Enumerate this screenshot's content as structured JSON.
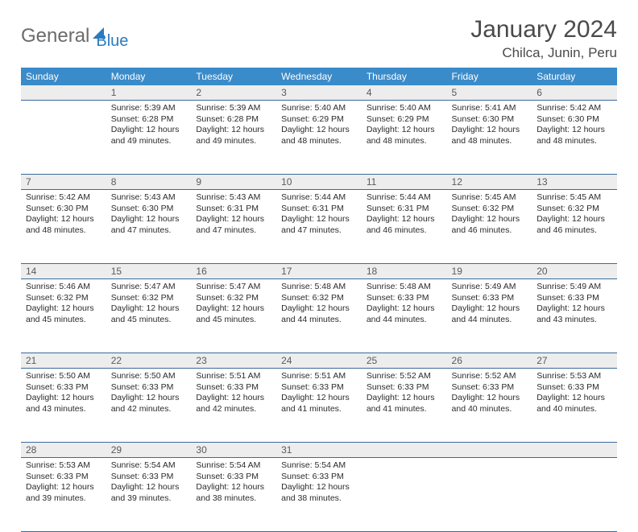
{
  "logo": {
    "part1": "General",
    "part2": "Blue"
  },
  "title": "January 2024",
  "location": "Chilca, Junin, Peru",
  "colors": {
    "header_bg": "#3a8bc9",
    "header_text": "#ffffff",
    "daynum_bg": "#ededed",
    "border": "#3a6a9a",
    "logo_gray": "#6b6b6b",
    "logo_blue": "#2b7bbf"
  },
  "day_names": [
    "Sunday",
    "Monday",
    "Tuesday",
    "Wednesday",
    "Thursday",
    "Friday",
    "Saturday"
  ],
  "start_offset": 1,
  "cells": [
    {
      "n": "1",
      "sunrise": "5:39 AM",
      "sunset": "6:28 PM",
      "daylight": "12 hours and 49 minutes."
    },
    {
      "n": "2",
      "sunrise": "5:39 AM",
      "sunset": "6:28 PM",
      "daylight": "12 hours and 49 minutes."
    },
    {
      "n": "3",
      "sunrise": "5:40 AM",
      "sunset": "6:29 PM",
      "daylight": "12 hours and 48 minutes."
    },
    {
      "n": "4",
      "sunrise": "5:40 AM",
      "sunset": "6:29 PM",
      "daylight": "12 hours and 48 minutes."
    },
    {
      "n": "5",
      "sunrise": "5:41 AM",
      "sunset": "6:30 PM",
      "daylight": "12 hours and 48 minutes."
    },
    {
      "n": "6",
      "sunrise": "5:42 AM",
      "sunset": "6:30 PM",
      "daylight": "12 hours and 48 minutes."
    },
    {
      "n": "7",
      "sunrise": "5:42 AM",
      "sunset": "6:30 PM",
      "daylight": "12 hours and 48 minutes."
    },
    {
      "n": "8",
      "sunrise": "5:43 AM",
      "sunset": "6:30 PM",
      "daylight": "12 hours and 47 minutes."
    },
    {
      "n": "9",
      "sunrise": "5:43 AM",
      "sunset": "6:31 PM",
      "daylight": "12 hours and 47 minutes."
    },
    {
      "n": "10",
      "sunrise": "5:44 AM",
      "sunset": "6:31 PM",
      "daylight": "12 hours and 47 minutes."
    },
    {
      "n": "11",
      "sunrise": "5:44 AM",
      "sunset": "6:31 PM",
      "daylight": "12 hours and 46 minutes."
    },
    {
      "n": "12",
      "sunrise": "5:45 AM",
      "sunset": "6:32 PM",
      "daylight": "12 hours and 46 minutes."
    },
    {
      "n": "13",
      "sunrise": "5:45 AM",
      "sunset": "6:32 PM",
      "daylight": "12 hours and 46 minutes."
    },
    {
      "n": "14",
      "sunrise": "5:46 AM",
      "sunset": "6:32 PM",
      "daylight": "12 hours and 45 minutes."
    },
    {
      "n": "15",
      "sunrise": "5:47 AM",
      "sunset": "6:32 PM",
      "daylight": "12 hours and 45 minutes."
    },
    {
      "n": "16",
      "sunrise": "5:47 AM",
      "sunset": "6:32 PM",
      "daylight": "12 hours and 45 minutes."
    },
    {
      "n": "17",
      "sunrise": "5:48 AM",
      "sunset": "6:32 PM",
      "daylight": "12 hours and 44 minutes."
    },
    {
      "n": "18",
      "sunrise": "5:48 AM",
      "sunset": "6:33 PM",
      "daylight": "12 hours and 44 minutes."
    },
    {
      "n": "19",
      "sunrise": "5:49 AM",
      "sunset": "6:33 PM",
      "daylight": "12 hours and 44 minutes."
    },
    {
      "n": "20",
      "sunrise": "5:49 AM",
      "sunset": "6:33 PM",
      "daylight": "12 hours and 43 minutes."
    },
    {
      "n": "21",
      "sunrise": "5:50 AM",
      "sunset": "6:33 PM",
      "daylight": "12 hours and 43 minutes."
    },
    {
      "n": "22",
      "sunrise": "5:50 AM",
      "sunset": "6:33 PM",
      "daylight": "12 hours and 42 minutes."
    },
    {
      "n": "23",
      "sunrise": "5:51 AM",
      "sunset": "6:33 PM",
      "daylight": "12 hours and 42 minutes."
    },
    {
      "n": "24",
      "sunrise": "5:51 AM",
      "sunset": "6:33 PM",
      "daylight": "12 hours and 41 minutes."
    },
    {
      "n": "25",
      "sunrise": "5:52 AM",
      "sunset": "6:33 PM",
      "daylight": "12 hours and 41 minutes."
    },
    {
      "n": "26",
      "sunrise": "5:52 AM",
      "sunset": "6:33 PM",
      "daylight": "12 hours and 40 minutes."
    },
    {
      "n": "27",
      "sunrise": "5:53 AM",
      "sunset": "6:33 PM",
      "daylight": "12 hours and 40 minutes."
    },
    {
      "n": "28",
      "sunrise": "5:53 AM",
      "sunset": "6:33 PM",
      "daylight": "12 hours and 39 minutes."
    },
    {
      "n": "29",
      "sunrise": "5:54 AM",
      "sunset": "6:33 PM",
      "daylight": "12 hours and 39 minutes."
    },
    {
      "n": "30",
      "sunrise": "5:54 AM",
      "sunset": "6:33 PM",
      "daylight": "12 hours and 38 minutes."
    },
    {
      "n": "31",
      "sunrise": "5:54 AM",
      "sunset": "6:33 PM",
      "daylight": "12 hours and 38 minutes."
    }
  ],
  "labels": {
    "sunrise": "Sunrise:",
    "sunset": "Sunset:",
    "daylight": "Daylight:"
  }
}
